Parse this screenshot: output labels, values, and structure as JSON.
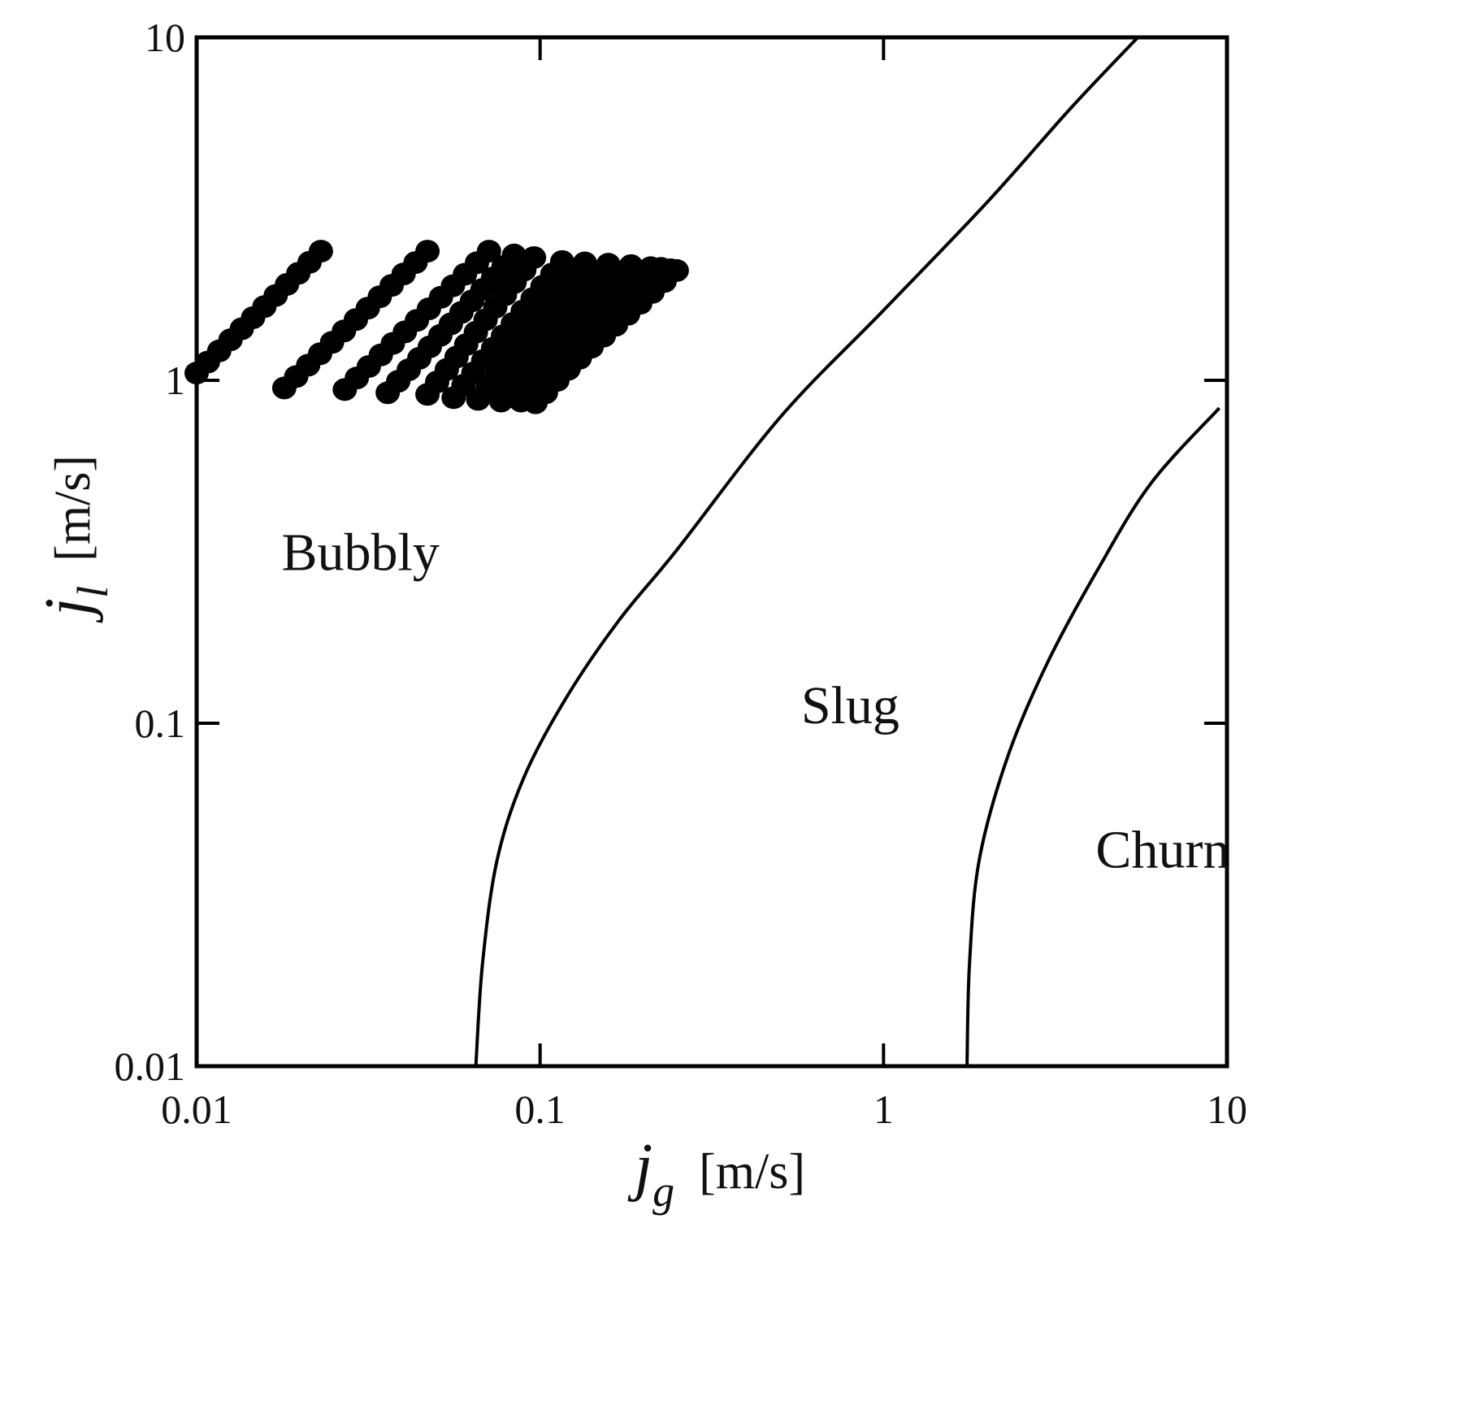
{
  "chart_data": {
    "type": "scatter",
    "title": "",
    "x_scale": "log",
    "y_scale": "log",
    "xlim": [
      0.01,
      10
    ],
    "ylim": [
      0.01,
      10
    ],
    "grid": false,
    "x_ticks": [
      "0.01",
      "0.1",
      "1",
      "10"
    ],
    "y_ticks": [
      "0.01",
      "0.1",
      "1",
      "10"
    ],
    "x_tick_values": [
      0.01,
      0.1,
      1,
      10
    ],
    "y_tick_values": [
      0.01,
      0.1,
      1,
      10
    ],
    "xlabel": {
      "var": "j",
      "sub": "g",
      "unit": "[m/s]"
    },
    "ylabel": {
      "var": "j",
      "sub": "l",
      "unit": "[m/s]"
    },
    "regions": [
      {
        "label": "Bubbly",
        "x": 0.03,
        "y": 0.28
      },
      {
        "label": "Slug",
        "x": 0.8,
        "y": 0.1
      },
      {
        "label": "Churn",
        "x": 6.5,
        "y": 0.038
      }
    ],
    "boundaries": [
      {
        "name": "bubbly-slug",
        "points": [
          [
            0.065,
            0.01
          ],
          [
            0.068,
            0.02
          ],
          [
            0.075,
            0.04
          ],
          [
            0.09,
            0.07
          ],
          [
            0.12,
            0.12
          ],
          [
            0.17,
            0.2
          ],
          [
            0.25,
            0.32
          ],
          [
            0.5,
            0.78
          ],
          [
            1.0,
            1.6
          ],
          [
            2.0,
            3.3
          ],
          [
            3.5,
            6.2
          ],
          [
            5.5,
            10
          ]
        ]
      },
      {
        "name": "slug-churn",
        "points": [
          [
            1.75,
            0.01
          ],
          [
            1.78,
            0.02
          ],
          [
            1.9,
            0.04
          ],
          [
            2.3,
            0.08
          ],
          [
            3.0,
            0.15
          ],
          [
            4.2,
            0.28
          ],
          [
            6.0,
            0.5
          ],
          [
            9.5,
            0.83
          ]
        ]
      }
    ],
    "series": [
      {
        "marker": "filled-circle",
        "color": "#000000",
        "data": [
          [
            0.01,
            1.05
          ],
          [
            0.023,
            2.38
          ],
          [
            0.018,
            0.95
          ],
          [
            0.047,
            2.38
          ],
          [
            0.027,
            0.94
          ],
          [
            0.071,
            2.38
          ],
          [
            0.036,
            0.92
          ],
          [
            0.084,
            2.32
          ],
          [
            0.047,
            0.91
          ],
          [
            0.096,
            2.28
          ],
          [
            0.056,
            0.89
          ],
          [
            0.116,
            2.22
          ],
          [
            0.066,
            0.88
          ],
          [
            0.135,
            2.2
          ],
          [
            0.077,
            0.87
          ],
          [
            0.158,
            2.18
          ],
          [
            0.088,
            0.87
          ],
          [
            0.184,
            2.16
          ],
          [
            0.097,
            0.86
          ],
          [
            0.21,
            2.13
          ],
          [
            0.104,
            0.92
          ],
          [
            0.225,
            2.12
          ],
          [
            0.112,
            1.0
          ],
          [
            0.24,
            2.1
          ],
          [
            0.12,
            1.08
          ],
          [
            0.25,
            2.09
          ]
        ]
      }
    ]
  }
}
